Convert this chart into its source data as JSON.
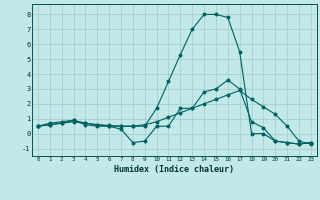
{
  "xlabel": "Humidex (Indice chaleur)",
  "xlim": [
    -0.5,
    23.5
  ],
  "ylim": [
    -1.5,
    8.7
  ],
  "yticks": [
    -1,
    0,
    1,
    2,
    3,
    4,
    5,
    6,
    7,
    8
  ],
  "xticks": [
    0,
    1,
    2,
    3,
    4,
    5,
    6,
    7,
    8,
    9,
    10,
    11,
    12,
    13,
    14,
    15,
    16,
    17,
    18,
    19,
    20,
    21,
    22,
    23
  ],
  "bg_color": "#c2e8e8",
  "grid_color": "#a0cccc",
  "line_color": "#006060",
  "line1_x": [
    0,
    1,
    2,
    3,
    4,
    5,
    6,
    7,
    8,
    9,
    10,
    11,
    12,
    13,
    14,
    15,
    16,
    17,
    18,
    19,
    20,
    21,
    22,
    23
  ],
  "line1_y": [
    0.5,
    0.7,
    0.8,
    0.9,
    0.6,
    0.5,
    0.5,
    0.5,
    0.5,
    0.5,
    1.7,
    3.5,
    5.3,
    7.0,
    8.0,
    8.0,
    7.8,
    5.5,
    0.0,
    0.0,
    -0.5,
    -0.6,
    -0.7,
    -0.6
  ],
  "line2_x": [
    0,
    1,
    2,
    3,
    4,
    5,
    6,
    7,
    8,
    9,
    10,
    11,
    12,
    13,
    14,
    15,
    16,
    17,
    18,
    19,
    20,
    21,
    22,
    23
  ],
  "line2_y": [
    0.5,
    0.6,
    0.7,
    0.9,
    0.7,
    0.6,
    0.5,
    0.3,
    -0.6,
    -0.5,
    0.5,
    0.5,
    1.7,
    1.7,
    2.8,
    3.0,
    3.6,
    3.0,
    0.8,
    0.4,
    -0.5,
    -0.6,
    -0.7,
    -0.6
  ],
  "line3_x": [
    0,
    1,
    2,
    3,
    4,
    5,
    6,
    7,
    8,
    9,
    10,
    11,
    12,
    13,
    14,
    15,
    16,
    17,
    18,
    19,
    20,
    21,
    22,
    23
  ],
  "line3_y": [
    0.5,
    0.6,
    0.7,
    0.8,
    0.7,
    0.6,
    0.55,
    0.5,
    0.5,
    0.6,
    0.8,
    1.1,
    1.4,
    1.7,
    2.0,
    2.3,
    2.6,
    2.9,
    2.3,
    1.8,
    1.3,
    0.5,
    -0.5,
    -0.7
  ]
}
